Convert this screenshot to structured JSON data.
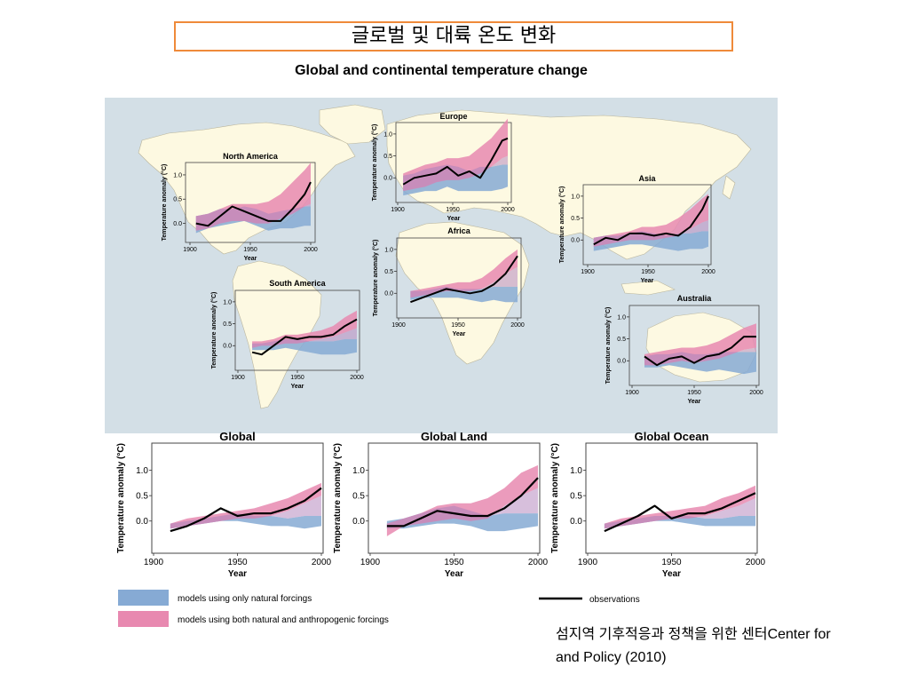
{
  "slide_title": "글로벌 및 대륙 온도 변화",
  "figure_title": "Global and continental temperature change",
  "caption": {
    "line1": "섬지역 기후적응과 정책을 위한 센터Center for",
    "line2": "and Policy (2010)"
  },
  "legend": {
    "natural": "models using only natural forcings",
    "both": "models using both natural and anthropogenic forcings",
    "observations": "observations"
  },
  "colors": {
    "map_background": "#d3dfe6",
    "land": "#fdf9e1",
    "natural_band": "#86aad4",
    "both_band": "#e889b0",
    "observations": "#000000",
    "title_border": "#ef8a3a"
  },
  "chart_data": [
    {
      "name": "North America",
      "type": "line",
      "title": "North America",
      "xlabel": "Year",
      "ylabel": "Temperature anomaly (°C)",
      "xlim": [
        1900,
        2000
      ],
      "ylim": [
        -0.3,
        1.2
      ],
      "xticks": [
        1900,
        1950,
        2000
      ],
      "yticks": [
        0.0,
        0.5,
        1.0
      ],
      "x": [
        1905,
        1915,
        1925,
        1935,
        1945,
        1955,
        1965,
        1975,
        1985,
        1995,
        2000
      ],
      "observations": [
        0.0,
        -0.05,
        0.15,
        0.35,
        0.25,
        0.15,
        0.05,
        0.05,
        0.3,
        0.6,
        0.85
      ],
      "natural": {
        "low": [
          -0.2,
          -0.1,
          -0.05,
          0.0,
          0.05,
          -0.05,
          -0.15,
          -0.1,
          -0.1,
          -0.05,
          -0.05
        ],
        "high": [
          0.15,
          0.2,
          0.3,
          0.3,
          0.35,
          0.3,
          0.2,
          0.25,
          0.3,
          0.35,
          0.35
        ]
      },
      "both": {
        "low": [
          -0.15,
          -0.1,
          0.0,
          0.05,
          0.05,
          0.0,
          0.0,
          0.1,
          0.2,
          0.35,
          0.4
        ],
        "high": [
          0.15,
          0.2,
          0.3,
          0.4,
          0.4,
          0.4,
          0.45,
          0.6,
          0.85,
          1.1,
          1.25
        ]
      }
    },
    {
      "name": "Europe",
      "type": "line",
      "title": "Europe",
      "xlabel": "Year",
      "ylabel": "Temperature anomaly (°C)",
      "xlim": [
        1900,
        2000
      ],
      "ylim": [
        -0.5,
        1.2
      ],
      "xticks": [
        1900,
        1950,
        2000
      ],
      "yticks": [
        0.0,
        0.5,
        1.0
      ],
      "x": [
        1905,
        1915,
        1925,
        1935,
        1945,
        1955,
        1965,
        1975,
        1985,
        1995,
        2000
      ],
      "observations": [
        -0.15,
        0.0,
        0.05,
        0.1,
        0.25,
        0.05,
        0.15,
        0.0,
        0.4,
        0.85,
        0.9
      ],
      "natural": {
        "low": [
          -0.4,
          -0.35,
          -0.3,
          -0.3,
          -0.2,
          -0.3,
          -0.3,
          -0.3,
          -0.3,
          -0.25,
          -0.2
        ],
        "high": [
          0.05,
          0.1,
          0.2,
          0.25,
          0.3,
          0.25,
          0.15,
          0.25,
          0.25,
          0.3,
          0.3
        ]
      },
      "both": {
        "low": [
          -0.3,
          -0.25,
          -0.2,
          -0.1,
          -0.05,
          -0.05,
          0.0,
          0.1,
          0.25,
          0.45,
          0.5
        ],
        "high": [
          0.1,
          0.2,
          0.3,
          0.35,
          0.45,
          0.45,
          0.5,
          0.7,
          0.9,
          1.2,
          1.35
        ]
      }
    },
    {
      "name": "Asia",
      "type": "line",
      "title": "Asia",
      "xlabel": "Year",
      "ylabel": "Temperature anomaly (°C)",
      "xlim": [
        1900,
        2000
      ],
      "ylim": [
        -0.5,
        1.2
      ],
      "xticks": [
        1900,
        1950,
        2000
      ],
      "yticks": [
        0.0,
        0.5,
        1.0
      ],
      "x": [
        1905,
        1915,
        1925,
        1935,
        1945,
        1955,
        1965,
        1975,
        1985,
        1995,
        2000
      ],
      "observations": [
        -0.1,
        0.05,
        0.0,
        0.15,
        0.15,
        0.1,
        0.15,
        0.1,
        0.3,
        0.7,
        1.0
      ],
      "natural": {
        "low": [
          -0.25,
          -0.2,
          -0.15,
          -0.1,
          -0.1,
          -0.15,
          -0.2,
          -0.25,
          -0.2,
          -0.2,
          -0.15
        ],
        "high": [
          0.05,
          0.1,
          0.1,
          0.15,
          0.2,
          0.15,
          0.1,
          0.15,
          0.15,
          0.2,
          0.2
        ]
      },
      "both": {
        "low": [
          -0.15,
          -0.1,
          -0.05,
          0.0,
          0.0,
          0.0,
          0.05,
          0.1,
          0.25,
          0.4,
          0.45
        ],
        "high": [
          0.05,
          0.1,
          0.15,
          0.2,
          0.3,
          0.3,
          0.35,
          0.5,
          0.7,
          0.95,
          1.05
        ]
      }
    },
    {
      "name": "Africa",
      "type": "line",
      "title": "Africa",
      "xlabel": "Year",
      "ylabel": "Temperature anomaly (°C)",
      "xlim": [
        1900,
        2000
      ],
      "ylim": [
        -0.5,
        1.2
      ],
      "xticks": [
        1900,
        1950,
        2000
      ],
      "yticks": [
        0.0,
        0.5,
        1.0
      ],
      "x": [
        1910,
        1920,
        1930,
        1940,
        1950,
        1960,
        1970,
        1980,
        1990,
        2000
      ],
      "observations": [
        -0.2,
        -0.1,
        0.0,
        0.1,
        0.05,
        0.0,
        0.05,
        0.2,
        0.45,
        0.85
      ],
      "natural": {
        "low": [
          -0.15,
          -0.1,
          -0.1,
          -0.1,
          -0.1,
          -0.15,
          -0.2,
          -0.15,
          -0.2,
          -0.2
        ],
        "high": [
          0.05,
          0.05,
          0.1,
          0.15,
          0.1,
          0.1,
          0.1,
          0.15,
          0.15,
          0.15
        ]
      },
      "both": {
        "low": [
          -0.1,
          -0.05,
          0.0,
          0.05,
          0.05,
          0.05,
          0.1,
          0.25,
          0.45,
          0.6
        ],
        "high": [
          0.05,
          0.1,
          0.15,
          0.2,
          0.25,
          0.25,
          0.35,
          0.55,
          0.8,
          1.0
        ]
      }
    },
    {
      "name": "South America",
      "type": "line",
      "title": "South America",
      "xlabel": "Year",
      "ylabel": "Temperature anomaly (°C)",
      "xlim": [
        1900,
        2000
      ],
      "ylim": [
        -0.5,
        1.2
      ],
      "xticks": [
        1900,
        1950,
        2000
      ],
      "yticks": [
        0.0,
        0.5,
        1.0
      ],
      "x": [
        1912,
        1920,
        1930,
        1940,
        1950,
        1960,
        1970,
        1980,
        1990,
        2000
      ],
      "observations": [
        -0.15,
        -0.2,
        0.0,
        0.2,
        0.15,
        0.2,
        0.2,
        0.25,
        0.45,
        0.6
      ],
      "natural": {
        "low": [
          -0.1,
          -0.1,
          -0.1,
          -0.05,
          -0.1,
          -0.15,
          -0.2,
          -0.2,
          -0.2,
          -0.15
        ],
        "high": [
          0.05,
          0.05,
          0.1,
          0.15,
          0.15,
          0.1,
          0.1,
          0.1,
          0.15,
          0.15
        ]
      },
      "both": {
        "low": [
          -0.05,
          0.0,
          0.0,
          0.05,
          0.05,
          0.1,
          0.15,
          0.2,
          0.3,
          0.4
        ],
        "high": [
          0.1,
          0.1,
          0.15,
          0.25,
          0.25,
          0.3,
          0.35,
          0.45,
          0.65,
          0.8
        ]
      }
    },
    {
      "name": "Australia",
      "type": "line",
      "title": "Australia",
      "xlabel": "Year",
      "ylabel": "Temperature anomaly (°C)",
      "xlim": [
        1900,
        2000
      ],
      "ylim": [
        -0.5,
        1.2
      ],
      "xticks": [
        1900,
        1950,
        2000
      ],
      "yticks": [
        0.0,
        0.5,
        1.0
      ],
      "x": [
        1910,
        1920,
        1930,
        1940,
        1950,
        1960,
        1970,
        1980,
        1990,
        2000
      ],
      "observations": [
        0.1,
        -0.1,
        0.05,
        0.1,
        -0.05,
        0.1,
        0.15,
        0.3,
        0.55,
        0.55
      ],
      "natural": {
        "low": [
          -0.15,
          -0.15,
          -0.1,
          -0.15,
          -0.2,
          -0.25,
          -0.2,
          -0.25,
          -0.3,
          -0.25
        ],
        "high": [
          0.1,
          0.15,
          0.15,
          0.2,
          0.15,
          0.15,
          0.2,
          0.2,
          0.2,
          0.2
        ]
      },
      "both": {
        "low": [
          -0.1,
          -0.1,
          -0.05,
          0.0,
          -0.05,
          0.0,
          0.05,
          0.15,
          0.25,
          0.3
        ],
        "high": [
          0.15,
          0.2,
          0.25,
          0.3,
          0.3,
          0.35,
          0.45,
          0.6,
          0.75,
          0.85
        ]
      }
    },
    {
      "name": "Global",
      "type": "line",
      "title": "Global",
      "xlabel": "Year",
      "ylabel": "Temperature anomaly (°C)",
      "xlim": [
        1900,
        2000
      ],
      "ylim": [
        -0.6,
        1.5
      ],
      "xticks": [
        1900,
        1950,
        2000
      ],
      "yticks": [
        0.0,
        0.5,
        1.0
      ],
      "x": [
        1910,
        1920,
        1930,
        1940,
        1950,
        1960,
        1970,
        1980,
        1990,
        2000
      ],
      "observations": [
        -0.2,
        -0.1,
        0.05,
        0.25,
        0.1,
        0.15,
        0.15,
        0.25,
        0.4,
        0.65
      ],
      "natural": {
        "low": [
          -0.15,
          -0.1,
          -0.05,
          0.0,
          0.0,
          -0.05,
          -0.1,
          -0.1,
          -0.15,
          -0.1
        ],
        "high": [
          -0.05,
          0.0,
          0.05,
          0.1,
          0.15,
          0.1,
          0.1,
          0.05,
          0.1,
          0.1
        ]
      },
      "both": {
        "low": [
          -0.15,
          -0.1,
          -0.05,
          0.0,
          0.05,
          0.05,
          0.1,
          0.2,
          0.35,
          0.5
        ],
        "high": [
          -0.05,
          0.05,
          0.1,
          0.15,
          0.2,
          0.25,
          0.35,
          0.45,
          0.6,
          0.75
        ]
      }
    },
    {
      "name": "Global Land",
      "type": "line",
      "title": "Global Land",
      "xlabel": "Year",
      "ylabel": "Temperature anomaly (°C)",
      "xlim": [
        1900,
        2000
      ],
      "ylim": [
        -0.6,
        1.5
      ],
      "xticks": [
        1900,
        1950,
        2000
      ],
      "yticks": [
        0.0,
        0.5,
        1.0
      ],
      "x": [
        1910,
        1920,
        1930,
        1940,
        1950,
        1960,
        1970,
        1980,
        1990,
        2000
      ],
      "observations": [
        -0.1,
        -0.1,
        0.05,
        0.2,
        0.15,
        0.1,
        0.1,
        0.25,
        0.5,
        0.85
      ],
      "natural": {
        "low": [
          -0.15,
          -0.15,
          -0.1,
          -0.05,
          -0.05,
          -0.1,
          -0.2,
          -0.2,
          -0.15,
          -0.1
        ],
        "high": [
          0.0,
          0.05,
          0.15,
          0.25,
          0.3,
          0.2,
          0.1,
          0.15,
          0.15,
          0.15
        ]
      },
      "both": {
        "low": [
          -0.3,
          -0.1,
          -0.05,
          0.0,
          0.05,
          0.0,
          0.05,
          0.3,
          0.5,
          0.65
        ],
        "high": [
          -0.05,
          0.05,
          0.15,
          0.3,
          0.35,
          0.35,
          0.45,
          0.65,
          0.95,
          1.1
        ]
      }
    },
    {
      "name": "Global Ocean",
      "type": "line",
      "title": "Global Ocean",
      "xlabel": "Year",
      "ylabel": "Temperature anomaly (°C)",
      "xlim": [
        1900,
        2000
      ],
      "ylim": [
        -0.6,
        1.5
      ],
      "xticks": [
        1900,
        1950,
        2000
      ],
      "yticks": [
        0.0,
        0.5,
        1.0
      ],
      "x": [
        1910,
        1920,
        1930,
        1940,
        1950,
        1960,
        1970,
        1980,
        1990,
        2000
      ],
      "observations": [
        -0.2,
        -0.05,
        0.1,
        0.3,
        0.05,
        0.15,
        0.15,
        0.25,
        0.4,
        0.55
      ],
      "natural": {
        "low": [
          -0.15,
          -0.1,
          -0.05,
          0.0,
          0.0,
          -0.05,
          -0.1,
          -0.1,
          -0.1,
          -0.1
        ],
        "high": [
          -0.05,
          0.0,
          0.05,
          0.1,
          0.1,
          0.1,
          0.05,
          0.05,
          0.1,
          0.1
        ]
      },
      "both": {
        "low": [
          -0.15,
          -0.1,
          -0.05,
          0.0,
          0.05,
          0.05,
          0.1,
          0.2,
          0.3,
          0.45
        ],
        "high": [
          -0.05,
          0.05,
          0.1,
          0.15,
          0.2,
          0.25,
          0.3,
          0.45,
          0.55,
          0.7
        ]
      }
    }
  ]
}
